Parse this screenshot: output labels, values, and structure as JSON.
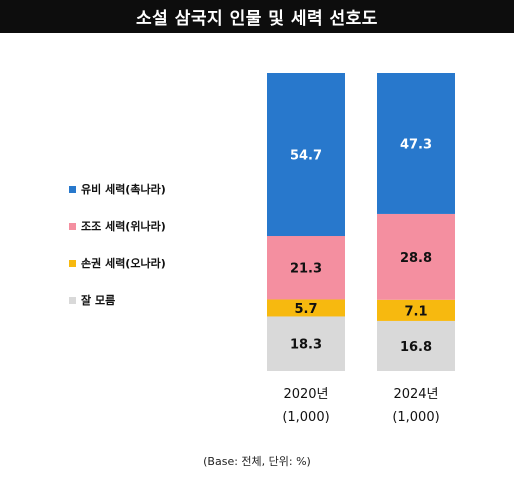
{
  "title": "소설 삼국지 인물 및 세력 선호도",
  "base_note": "(Base: 전체, 단위: %)",
  "legend": [
    {
      "label": "유비 세력(촉나라)",
      "color": "#2878cc"
    },
    {
      "label": "조조 세력(위나라)",
      "color": "#f48fa0"
    },
    {
      "label": "손권 세력(오나라)",
      "color": "#f7b90f"
    },
    {
      "label": "잘 모름",
      "color": "#d9d9d9"
    }
  ],
  "chart_data": {
    "type": "bar",
    "stacked": true,
    "categories": [
      "2020년",
      "2024년"
    ],
    "category_sublabels": [
      "(1,000)",
      "(1,000)"
    ],
    "series": [
      {
        "name": "유비 세력(촉나라)",
        "color": "#2878cc",
        "values": [
          54.7,
          47.3
        ],
        "labels": [
          "54.7",
          "47.3"
        ]
      },
      {
        "name": "조조 세력(위나라)",
        "color": "#f48fa0",
        "values": [
          21.3,
          28.8
        ],
        "labels": [
          "21.3",
          "28.8"
        ]
      },
      {
        "name": "손권 세력(오나라)",
        "color": "#f7b90f",
        "values": [
          5.7,
          7.1
        ],
        "labels": [
          "5.7",
          "7.1"
        ]
      },
      {
        "name": "잘 모름",
        "color": "#d9d9d9",
        "values": [
          18.3,
          16.8
        ],
        "labels": [
          "18.3",
          "16.8"
        ]
      }
    ],
    "ylim": [
      0,
      100
    ],
    "grid": false,
    "legend_position": "left"
  }
}
